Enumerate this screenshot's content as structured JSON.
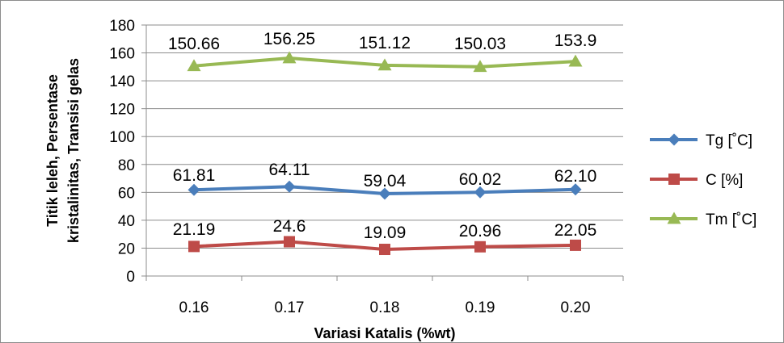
{
  "chart_data": {
    "type": "line",
    "categories": [
      "0.16",
      "0.17",
      "0.18",
      "0.19",
      "0.20"
    ],
    "xlabel": "Variasi Katalis (%wt)",
    "ylabel_lines": [
      "Titik leleh, Persentase",
      "kristalinitas, Transisi gelas"
    ],
    "ylim": [
      0,
      180
    ],
    "yticks": [
      "0",
      "20",
      "40",
      "60",
      "80",
      "100",
      "120",
      "140",
      "160",
      "180"
    ],
    "grid": true,
    "legend_position": "right",
    "series": [
      {
        "name": "Tg [˚C]",
        "marker": "diamond",
        "color": "#4a7ebb",
        "values": [
          61.81,
          64.11,
          59.04,
          60.02,
          62.1
        ],
        "labels": [
          "61.81",
          "64.11",
          "59.04",
          "60.02",
          "62.10"
        ]
      },
      {
        "name": "C [%]",
        "marker": "square",
        "color": "#be4b48",
        "values": [
          21.19,
          24.6,
          19.09,
          20.96,
          22.05
        ],
        "labels": [
          "21.19",
          "24.6",
          "19.09",
          "20.96",
          "22.05"
        ]
      },
      {
        "name": "Tm [˚C]",
        "marker": "triangle",
        "color": "#98b954",
        "values": [
          150.66,
          156.25,
          151.12,
          150.03,
          153.9
        ],
        "labels": [
          "150.66",
          "156.25",
          "151.12",
          "150.03",
          "153.9"
        ]
      }
    ]
  }
}
